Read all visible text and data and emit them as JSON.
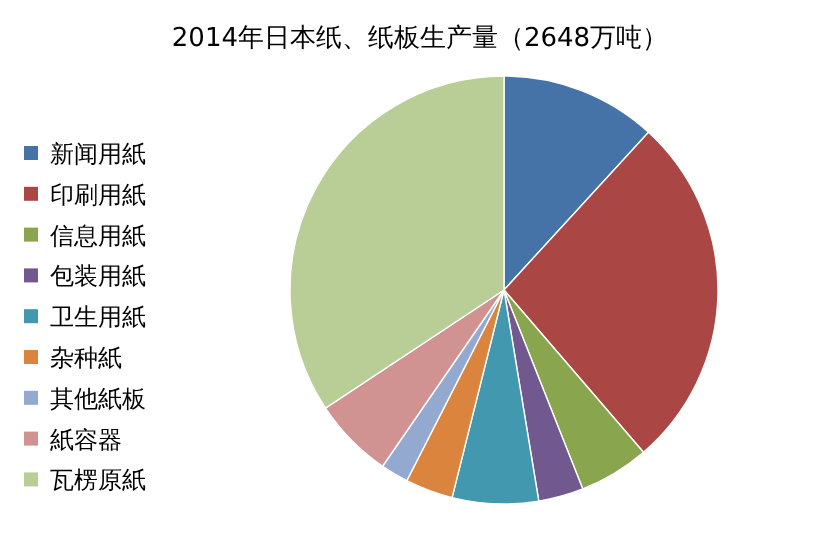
{
  "chart_data": {
    "type": "pie",
    "title": "2014年日本纸、纸板生产量（2648万吨）",
    "legend": "left",
    "categories": [
      "新闻用紙",
      "印刷用紙",
      "信息用紙",
      "包装用紙",
      "卫生用紙",
      "杂种紙",
      "其他紙板",
      "紙容器",
      "瓦楞原紙"
    ],
    "values": [
      11.8,
      26.9,
      5.3,
      3.4,
      6.5,
      3.6,
      2.1,
      6.1,
      34.3
    ],
    "colors": [
      "#4572a7",
      "#aa4643",
      "#89a54e",
      "#71588f",
      "#4198af",
      "#db843d",
      "#93a9cf",
      "#d19392",
      "#b9cd96"
    ]
  }
}
